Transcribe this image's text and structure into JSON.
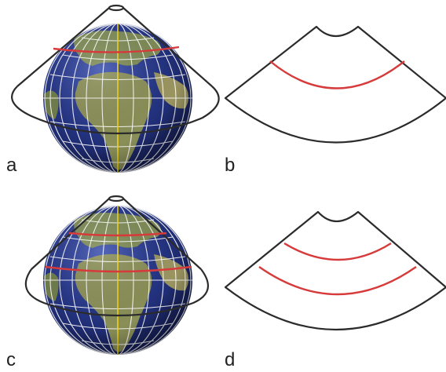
{
  "panels": [
    {
      "id": "a",
      "label": "a"
    },
    {
      "id": "b",
      "label": "b"
    },
    {
      "id": "c",
      "label": "c"
    },
    {
      "id": "d",
      "label": "d"
    }
  ],
  "colors": {
    "outline": "#2b2b2b",
    "standard_parallel": "#d63a3a",
    "graticule": "#ffffff",
    "central_meridian": "#f2d21b",
    "ocean": "#23327f",
    "land": "#7d8a55"
  },
  "icons": [
    "globe-icon",
    "cone-icon",
    "developed-cone-icon"
  ]
}
